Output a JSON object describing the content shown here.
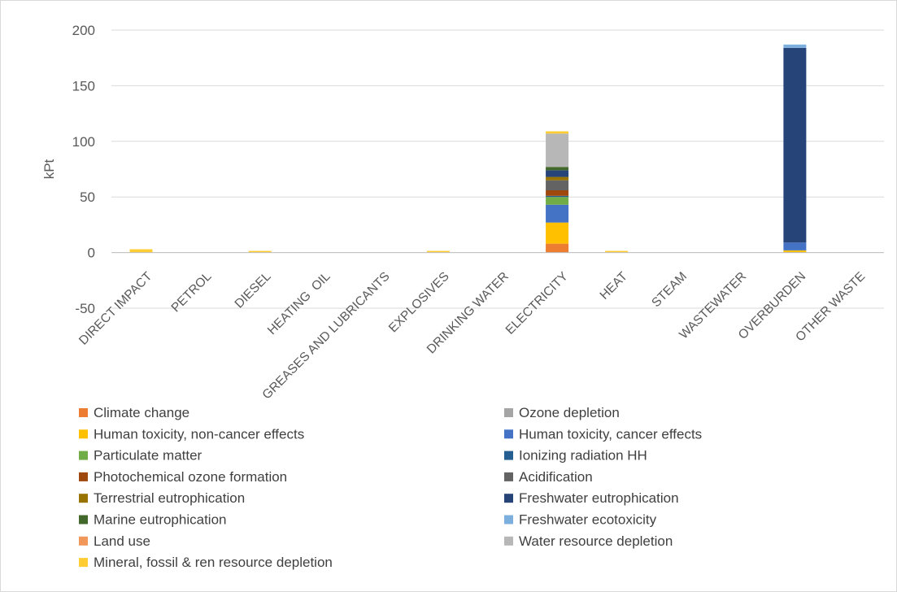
{
  "chart_data": {
    "type": "bar",
    "stacked": true,
    "title": "",
    "xlabel": "",
    "ylabel": "kPt",
    "ylim": [
      -50,
      200
    ],
    "yticks": [
      -50,
      0,
      50,
      100,
      150,
      200
    ],
    "grid": true,
    "legend_position": "bottom",
    "categories": [
      "DIRECT IMPACT",
      "PETROL",
      "DIESEL",
      "HEATING  OIL",
      "GREASES AND LUBRICANTS",
      "EXPLOSIVES",
      "DRINKING WATER",
      "ELECTRICITY",
      "HEAT",
      "STEAM",
      "WASTEWATER",
      "OVERBURDEN",
      "OTHER WASTE"
    ],
    "series": [
      {
        "name": "Climate change",
        "color": "#ED7D31",
        "values": [
          0,
          0,
          0,
          0,
          0,
          0,
          0,
          8,
          0,
          0,
          0,
          0.5,
          0
        ]
      },
      {
        "name": "Ozone depletion",
        "color": "#A5A5A5",
        "values": [
          0,
          0,
          0,
          0,
          0,
          0,
          0,
          0,
          0,
          0,
          0,
          0,
          0
        ]
      },
      {
        "name": "Human toxicity, non-cancer effects",
        "color": "#FFC000",
        "values": [
          0,
          0,
          0,
          0,
          0,
          0,
          0,
          19,
          0,
          0,
          0,
          1.5,
          0
        ]
      },
      {
        "name": "Human toxicity, cancer effects",
        "color": "#4472C4",
        "values": [
          0,
          0,
          0,
          0,
          0,
          0,
          0,
          16,
          0,
          0,
          0,
          7,
          0
        ]
      },
      {
        "name": "Particulate matter",
        "color": "#70AD47",
        "values": [
          0,
          0,
          0,
          0,
          0,
          0,
          0,
          7,
          0,
          0,
          0,
          0,
          0
        ]
      },
      {
        "name": "Ionizing radiation HH",
        "color": "#255E91",
        "values": [
          0,
          0,
          0,
          0,
          0,
          0,
          0,
          1,
          0,
          0,
          0,
          0,
          0
        ]
      },
      {
        "name": "Photochemical ozone formation",
        "color": "#9E480E",
        "values": [
          0,
          0,
          0,
          0,
          0,
          0,
          0,
          5,
          0,
          0,
          0,
          0,
          0
        ]
      },
      {
        "name": "Acidification",
        "color": "#636363",
        "values": [
          0,
          0,
          0,
          0,
          0,
          0,
          0,
          9,
          0,
          0,
          0,
          0,
          0
        ]
      },
      {
        "name": "Terrestrial eutrophication",
        "color": "#997300",
        "values": [
          0,
          0,
          0,
          0,
          0,
          0,
          0,
          3,
          0,
          0,
          0,
          0,
          0
        ]
      },
      {
        "name": "Freshwater eutrophication",
        "color": "#264478",
        "values": [
          0,
          0,
          0,
          0,
          0,
          0,
          0,
          6,
          0,
          0,
          0,
          175,
          0
        ]
      },
      {
        "name": "Marine eutrophication",
        "color": "#43682B",
        "values": [
          0,
          0,
          0,
          0,
          0,
          0,
          0,
          3,
          0,
          0,
          0,
          0,
          0
        ]
      },
      {
        "name": "Freshwater ecotoxicity",
        "color": "#7CAFDD",
        "values": [
          0,
          0,
          0,
          0,
          0,
          0,
          0,
          0,
          0,
          0,
          0,
          3,
          0
        ]
      },
      {
        "name": "Land use",
        "color": "#F1975A",
        "values": [
          0,
          0,
          0,
          0,
          0,
          0,
          0,
          0,
          0,
          0,
          0,
          0,
          0
        ]
      },
      {
        "name": "Water resource depletion",
        "color": "#B7B7B7",
        "values": [
          0,
          0,
          0,
          0,
          0,
          0,
          0,
          30,
          0,
          0,
          0,
          0,
          0
        ]
      },
      {
        "name": "Mineral, fossil & ren resource depletion",
        "color": "#FFCD33",
        "values": [
          3,
          0,
          1.5,
          0,
          0,
          1.5,
          0,
          2,
          1.5,
          0,
          0,
          0,
          0
        ]
      }
    ]
  }
}
